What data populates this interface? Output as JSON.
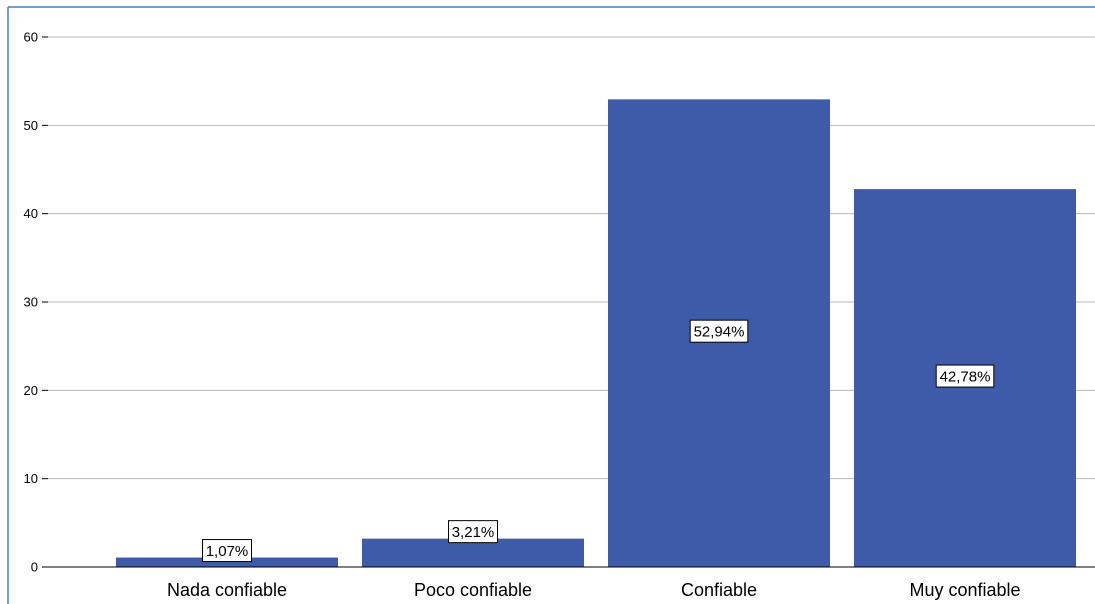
{
  "chart_data": {
    "type": "bar",
    "categories": [
      "Nada confiable",
      "Poco confiable",
      "Confiable",
      "Muy confiable"
    ],
    "values": [
      1.07,
      3.21,
      52.94,
      42.78
    ],
    "data_labels": [
      "1,07%",
      "3,21%",
      "52,94%",
      "42,78%"
    ],
    "y_ticks": [
      "0",
      "10",
      "20",
      "30",
      "40",
      "50",
      "60"
    ],
    "ylim": [
      0,
      60
    ],
    "grid": true,
    "title": "",
    "xlabel": "",
    "ylabel": "",
    "colors": {
      "bar": "#3e5ba9",
      "frame": "#4a7fc1",
      "grid": "#b8b8b8"
    }
  }
}
